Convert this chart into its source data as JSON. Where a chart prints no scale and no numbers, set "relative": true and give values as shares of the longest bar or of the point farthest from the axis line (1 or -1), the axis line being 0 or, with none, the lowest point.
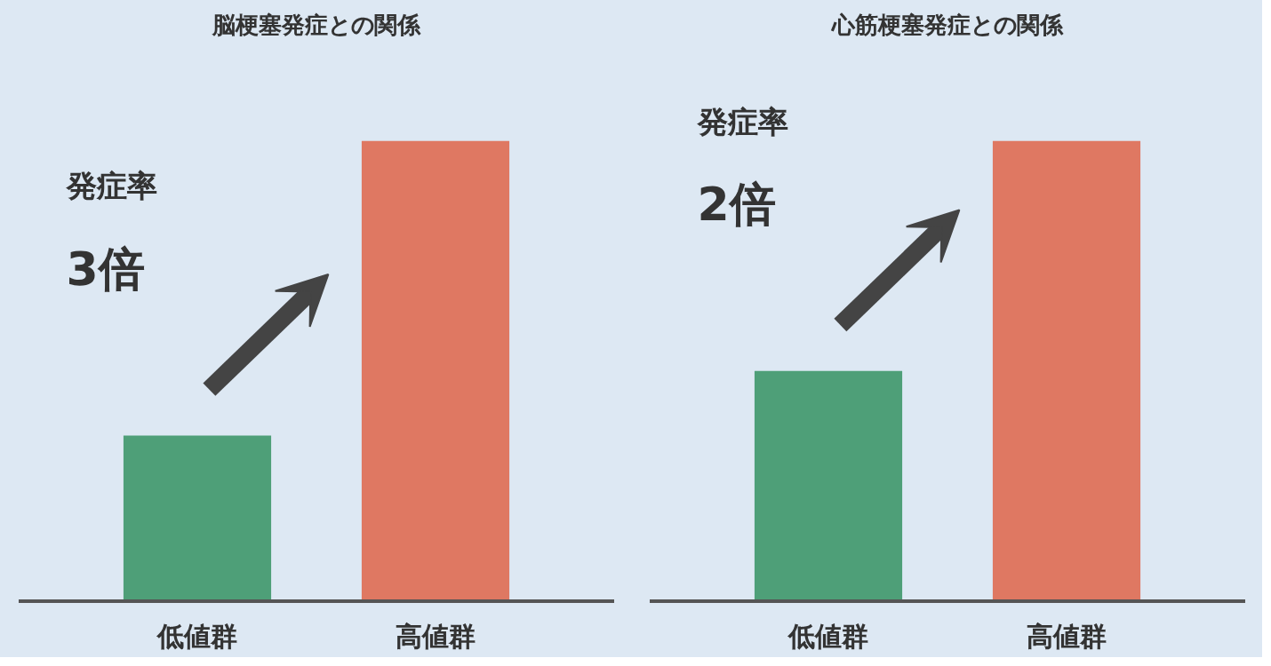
{
  "chart_data": [
    {
      "type": "bar",
      "title": "脳梗塞発症との関係",
      "categories": [
        "低値群",
        "高値群"
      ],
      "relative": true,
      "values": [
        0.36,
        1
      ],
      "colors": [
        "#4e9f78",
        "#df7862"
      ],
      "annotations": [
        "発症率",
        "3倍"
      ]
    },
    {
      "type": "bar",
      "title": "心筋梗塞発症との関係",
      "categories": [
        "低値群",
        "高値群"
      ],
      "relative": true,
      "values": [
        0.5,
        1
      ],
      "colors": [
        "#4e9f78",
        "#df7862"
      ],
      "annotations": [
        "発症率",
        "2倍"
      ]
    }
  ]
}
